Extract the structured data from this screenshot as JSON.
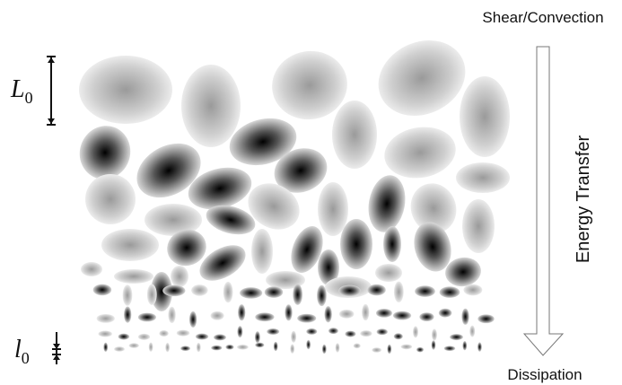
{
  "labels": {
    "top": "Shear/Convection",
    "side": "Energy Transfer",
    "bottom": "Dissipation"
  },
  "scales": {
    "large": {
      "symbol": "L",
      "subscript": "0"
    },
    "small": {
      "symbol": "l",
      "subscript": "0"
    }
  }
}
